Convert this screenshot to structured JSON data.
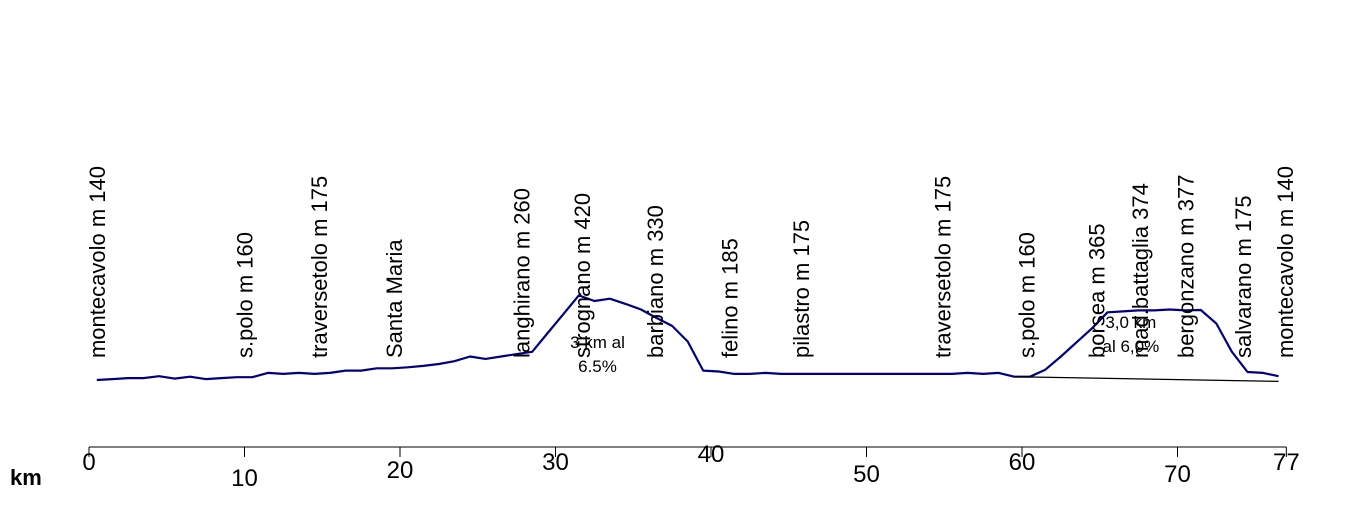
{
  "chart_data": {
    "type": "line",
    "title": "",
    "xlabel": "km",
    "ylabel": "",
    "xlim": [
      0,
      77
    ],
    "grid": false,
    "legend": "none",
    "colors": {
      "profile": "#000080",
      "axis": "#000000",
      "chord": "#000000"
    },
    "x_ticks": [
      {
        "value": 0,
        "label": "0"
      },
      {
        "value": 10,
        "label": "10"
      },
      {
        "value": 20,
        "label": "20"
      },
      {
        "value": 30,
        "label": "30"
      },
      {
        "value": 40,
        "label": "40"
      },
      {
        "value": 50,
        "label": "50"
      },
      {
        "value": 60,
        "label": "60"
      },
      {
        "value": 70,
        "label": "70"
      },
      {
        "value": 77,
        "label": "77"
      }
    ],
    "series": [
      {
        "x": [
          0.5,
          1.5,
          2.5,
          3.5,
          4.5,
          5.5,
          6.5,
          7.5,
          8.5,
          9.5,
          10.5,
          11.5,
          12.5,
          13.5,
          14.5,
          15.5,
          16.5,
          17.5,
          18.5,
          19.5,
          20.5,
          21.5,
          22.5,
          23.5,
          24.5,
          25.5,
          26.5,
          27.5,
          28.5,
          29.5,
          30.5,
          31.5,
          32.5,
          33.5,
          34.5,
          35.5,
          36.5,
          37.5,
          38.5,
          39.5,
          40.5,
          41.5,
          42.5,
          43.5,
          44.5,
          45.5,
          46.5,
          47.5,
          48.5,
          49.5,
          50.5,
          51.5,
          52.5,
          53.5,
          54.5,
          55.5,
          56.5,
          57.5,
          58.5,
          59.5,
          60.5,
          61.5,
          62.5,
          63.5,
          64.5,
          65.5,
          66.5,
          67.5,
          68.5,
          69.5,
          70.5,
          71.5,
          72.5,
          73.5,
          74.5,
          75.5,
          76.5
        ],
        "y": [
          140,
          142,
          144,
          144,
          148,
          143,
          147,
          142,
          144,
          146,
          146,
          155,
          153,
          155,
          153,
          155,
          160,
          160,
          165,
          165,
          167,
          170,
          174,
          180,
          190,
          185,
          190,
          195,
          200,
          240,
          280,
          320,
          308,
          313,
          302,
          290,
          272,
          255,
          222,
          160,
          158,
          153,
          153,
          155,
          153,
          153,
          153,
          153,
          153,
          153,
          153,
          153,
          153,
          153,
          153,
          153,
          155,
          153,
          155,
          147,
          147,
          162,
          190,
          220,
          250,
          284,
          286,
          288,
          288,
          290,
          288,
          289,
          260,
          200,
          157,
          155,
          148
        ]
      },
      {
        "x": [
          59.5,
          76.5
        ],
        "y": [
          147,
          137
        ]
      }
    ],
    "places": [
      {
        "label": "montecavolo m 140",
        "km": 0.5
      },
      {
        "label": "s.polo m 160",
        "km": 10
      },
      {
        "label": "traversetolo m 175",
        "km": 14.8
      },
      {
        "label": "Santa Maria",
        "km": 19.6
      },
      {
        "label": "langhirano m 260",
        "km": 27.8
      },
      {
        "label": "strognano m 420",
        "km": 31.7
      },
      {
        "label": "barbiano m 330",
        "km": 36.4
      },
      {
        "label": "felino m 185",
        "km": 41.2
      },
      {
        "label": "pilastro m 175",
        "km": 45.8
      },
      {
        "label": "traversetolo m 175",
        "km": 54.9
      },
      {
        "label": "s.polo m 160",
        "km": 60.3
      },
      {
        "label": "borsea m 365",
        "km": 64.8
      },
      {
        "label": "mad.battaglia 374",
        "km": 67.6
      },
      {
        "label": "bergonzano m 377",
        "km": 70.5
      },
      {
        "label": "salvarano m 175",
        "km": 74.2
      },
      {
        "label": "montecavolo m 140",
        "km": 76.9
      }
    ],
    "annotations": [
      {
        "lines": [
          "3 km al",
          "6.5%"
        ],
        "km": 32.7
      },
      {
        "lines": [
          "3,0 km",
          "al 6,0%"
        ],
        "km": 67.0
      }
    ]
  }
}
